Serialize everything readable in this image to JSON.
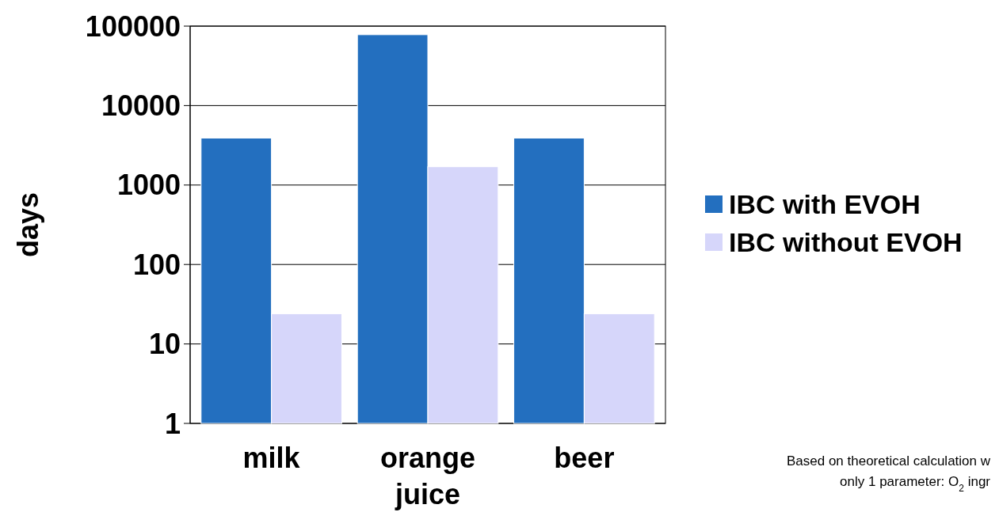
{
  "chart_data": {
    "type": "bar",
    "ylabel": "days",
    "categories": [
      "milk",
      "orange juice",
      "beer"
    ],
    "series": [
      {
        "name": "IBC with EVOH",
        "color": "#236fbf",
        "values": [
          3900,
          78000,
          3900
        ]
      },
      {
        "name": "IBC without EVOH",
        "color": "#d6d6fa",
        "values": [
          24,
          1700,
          24
        ]
      }
    ],
    "log": true,
    "ylim": [
      1,
      100000
    ],
    "yticks": [
      1,
      10,
      100,
      1000,
      10000,
      100000
    ],
    "grid": "y",
    "legend": "right",
    "annotations": [
      "Based on theoretical calculation w",
      "only 1 parameter: O$_{2}$ ingr"
    ]
  }
}
